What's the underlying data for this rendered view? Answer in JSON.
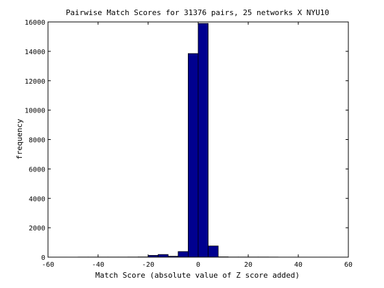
{
  "chart_data": {
    "type": "bar",
    "title": "Pairwise Match Scores for 31376 pairs, 25 networks X NYU10",
    "xlabel": "Match Score (absolute value of Z score added)",
    "ylabel": "frequency",
    "xlim": [
      -60,
      60
    ],
    "ylim": [
      0,
      16000
    ],
    "xticks": [
      -60,
      -40,
      -20,
      0,
      20,
      40,
      60
    ],
    "yticks": [
      0,
      2000,
      4000,
      6000,
      8000,
      10000,
      12000,
      14000,
      16000
    ],
    "bin_width": 4,
    "bins": [
      {
        "x0": -56,
        "x1": -52,
        "value": 5
      },
      {
        "x0": -52,
        "x1": -48,
        "value": 0
      },
      {
        "x0": -48,
        "x1": -44,
        "value": 8
      },
      {
        "x0": -44,
        "x1": -40,
        "value": 8
      },
      {
        "x0": -40,
        "x1": -36,
        "value": 8
      },
      {
        "x0": -36,
        "x1": -32,
        "value": 8
      },
      {
        "x0": -32,
        "x1": -28,
        "value": 8
      },
      {
        "x0": -28,
        "x1": -24,
        "value": 10
      },
      {
        "x0": -24,
        "x1": -20,
        "value": 15
      },
      {
        "x0": -20,
        "x1": -16,
        "value": 120
      },
      {
        "x0": -16,
        "x1": -12,
        "value": 180
      },
      {
        "x0": -12,
        "x1": -8,
        "value": 60
      },
      {
        "x0": -8,
        "x1": -4,
        "value": 380
      },
      {
        "x0": -4,
        "x1": 0,
        "value": 13850
      },
      {
        "x0": 0,
        "x1": 4,
        "value": 15900
      },
      {
        "x0": 4,
        "x1": 8,
        "value": 760
      },
      {
        "x0": 8,
        "x1": 12,
        "value": 20
      },
      {
        "x0": 12,
        "x1": 16,
        "value": 10
      },
      {
        "x0": 16,
        "x1": 20,
        "value": 10
      },
      {
        "x0": 20,
        "x1": 24,
        "value": 10
      },
      {
        "x0": 24,
        "x1": 28,
        "value": 10
      },
      {
        "x0": 28,
        "x1": 32,
        "value": 8
      },
      {
        "x0": 32,
        "x1": 36,
        "value": 5
      },
      {
        "x0": 36,
        "x1": 40,
        "value": 5
      },
      {
        "x0": 40,
        "x1": 44,
        "value": 5
      },
      {
        "x0": 44,
        "x1": 48,
        "value": 0
      },
      {
        "x0": 48,
        "x1": 52,
        "value": 5
      },
      {
        "x0": 52,
        "x1": 56,
        "value": 0
      }
    ],
    "bar_color": "#00008f",
    "edge_color": "#000000",
    "grid": false,
    "legend": "none"
  }
}
